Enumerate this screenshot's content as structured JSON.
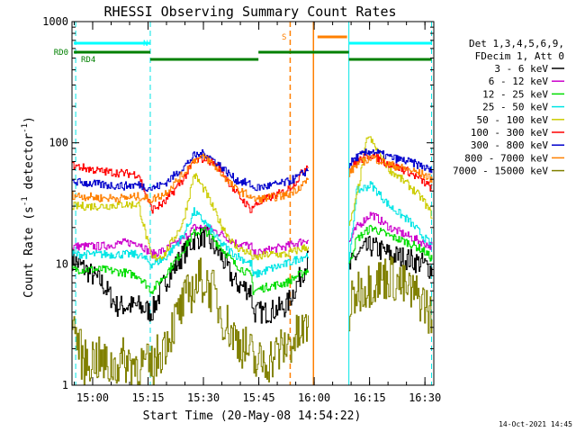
{
  "chart_data": {
    "type": "line",
    "title": "RHESSI Observing Summary Count Rates",
    "xlabel": "Start Time (20-May-08 14:54:22)",
    "ylabel": "Count Rate (s",
    "ylabel_sup": "-1",
    "ylabel_tail": " detector",
    "ylabel_tail_sup": "-1",
    "ylabel_end": ")",
    "x_unit": "minutes since 14:54:22",
    "xlim": [
      0,
      98
    ],
    "ylim": [
      1,
      1000
    ],
    "y_scale": "log",
    "x_tick_labels": [
      "15:00",
      "15:15",
      "15:30",
      "15:45",
      "16:00",
      "16:15",
      "16:30"
    ],
    "x_ticks": [
      5.6,
      20.6,
      35.6,
      50.6,
      65.6,
      80.6,
      95.6
    ],
    "y_tick_labels": [
      "1",
      "10",
      "100",
      "1000"
    ],
    "y_ticks": [
      1,
      10,
      100,
      1000
    ],
    "grid": false,
    "legend_header": [
      "Det 1,3,4,5,6,9,",
      "FDecim 1, Att 0"
    ],
    "legend_position": "right",
    "footer": "14-Oct-2021 14:45",
    "flags": {
      "RD0_label": "RD0",
      "RD4_label": "RD4",
      "N_label": "N",
      "S_label": "S",
      "saa_color": "#00ffff",
      "rd_color": "#008000",
      "s_color": "#ff8000"
    },
    "gaps": [
      [
        64,
        75
      ]
    ],
    "vertical_lines": [
      {
        "x": 1.0,
        "color": "#00e5e5",
        "style": "dashed"
      },
      {
        "x": 21.2,
        "color": "#00e5e5",
        "style": "dashed"
      },
      {
        "x": 75.0,
        "color": "#00e5e5",
        "style": "solid"
      },
      {
        "x": 97.4,
        "color": "#00e5e5",
        "style": "dashed"
      },
      {
        "x": 59.1,
        "color": "#ff8000",
        "style": "dashed"
      },
      {
        "x": 65.4,
        "color": "#ff8000",
        "style": "solid"
      }
    ],
    "series": [
      {
        "name": "3 - 6 keV",
        "color": "#000000",
        "x": [
          0,
          8,
          12,
          18,
          21.5,
          25,
          30,
          33,
          36,
          40,
          44,
          48.5,
          49,
          53,
          58,
          61,
          64,
          75,
          77,
          81,
          86,
          91,
          95,
          97.5
        ],
        "y": [
          11,
          7,
          4.5,
          4.5,
          4,
          7,
          12,
          16,
          17,
          12,
          7,
          6,
          4,
          4,
          4.5,
          7,
          11,
          9,
          12,
          14,
          12,
          11,
          10,
          9
        ]
      },
      {
        "name": "6 - 12 keV",
        "color": "#cc00cc",
        "x": [
          0,
          8,
          14,
          18,
          21.5,
          25,
          30,
          33,
          36,
          40,
          44,
          48.5,
          49,
          53,
          58,
          61,
          64,
          75,
          77,
          81,
          86,
          91,
          95,
          97.5
        ],
        "y": [
          14,
          14,
          15,
          15,
          12,
          13,
          16,
          20,
          20,
          18,
          15,
          14,
          12,
          13,
          14,
          15,
          16,
          15,
          20,
          26,
          20,
          17,
          15,
          14
        ]
      },
      {
        "name": "12 - 25 keV",
        "color": "#00dd00",
        "x": [
          0,
          8,
          14,
          18,
          21.5,
          25,
          30,
          33,
          36,
          40,
          44,
          48.5,
          49,
          53,
          58,
          61,
          64,
          75,
          77,
          81,
          86,
          91,
          95,
          97.5
        ],
        "y": [
          9,
          9,
          8.5,
          8,
          6,
          8,
          13,
          18,
          19,
          14,
          10,
          8,
          6,
          6.5,
          7,
          8,
          9,
          10,
          16,
          20,
          17,
          15,
          13,
          11
        ]
      },
      {
        "name": "25 - 50 keV",
        "color": "#00e5e5",
        "x": [
          0,
          8,
          14,
          18,
          21.5,
          25,
          30,
          33,
          36,
          40,
          44,
          48.5,
          49,
          53,
          58,
          61,
          64,
          75,
          77,
          81,
          86,
          91,
          95,
          97.5
        ],
        "y": [
          12,
          12,
          12,
          12,
          10,
          11,
          17,
          27,
          22,
          15,
          12,
          10,
          8,
          9,
          10,
          11,
          12,
          10,
          40,
          45,
          30,
          23,
          17,
          14
        ]
      },
      {
        "name": "50 - 100 keV",
        "color": "#cccc00",
        "x": [
          0,
          8,
          14,
          18,
          21.5,
          25,
          30,
          33,
          36,
          40,
          44,
          48.5,
          49,
          53,
          58,
          61,
          64,
          75,
          77,
          80,
          86,
          91,
          95,
          97.5
        ],
        "y": [
          30,
          30,
          31,
          31,
          11,
          12,
          22,
          55,
          40,
          22,
          14,
          12,
          11,
          12,
          12,
          13,
          14,
          20,
          35,
          115,
          60,
          45,
          34,
          25
        ]
      },
      {
        "name": "100 - 300 keV",
        "color": "#ff0000",
        "x": [
          0,
          8,
          14,
          18,
          21.5,
          25,
          30,
          33,
          36,
          40,
          44,
          48.5,
          49,
          53,
          58,
          61,
          64,
          75,
          77,
          81,
          86,
          91,
          95,
          97.5
        ],
        "y": [
          65,
          58,
          56,
          55,
          28,
          32,
          50,
          70,
          75,
          62,
          40,
          28,
          30,
          35,
          40,
          50,
          68,
          60,
          70,
          80,
          66,
          58,
          48,
          42
        ]
      },
      {
        "name": "300 - 800 keV",
        "color": "#0000cc",
        "x": [
          0,
          8,
          14,
          18,
          21.5,
          25,
          30,
          33,
          36,
          40,
          44,
          48.5,
          49,
          53,
          58,
          61,
          64,
          75,
          77,
          81,
          86,
          91,
          95,
          97.5
        ],
        "y": [
          48,
          45,
          44,
          45,
          42,
          46,
          62,
          78,
          82,
          65,
          50,
          45,
          42,
          44,
          47,
          52,
          60,
          66,
          76,
          86,
          76,
          70,
          64,
          58
        ]
      },
      {
        "name": "800 - 7000 keV",
        "color": "#ff8000",
        "x": [
          0,
          8,
          14,
          18,
          21.5,
          25,
          30,
          33,
          36,
          40,
          44,
          48.5,
          49,
          53,
          58,
          61,
          64,
          75,
          77,
          81,
          86,
          91,
          95,
          97.5
        ],
        "y": [
          37,
          35,
          35,
          36,
          34,
          38,
          55,
          72,
          76,
          58,
          42,
          36,
          34,
          35,
          37,
          42,
          50,
          56,
          66,
          76,
          66,
          60,
          55,
          50
        ]
      },
      {
        "name": "7000 - 15000 keV",
        "color": "#808000",
        "x": [
          0,
          3,
          6,
          10,
          14,
          18,
          21.5,
          25,
          29,
          32,
          35,
          38,
          41,
          44,
          48.5,
          49,
          53,
          57,
          61,
          64,
          75,
          77,
          81,
          86,
          91,
          95,
          97.5
        ],
        "y": [
          3.5,
          1.5,
          1.7,
          1.4,
          1.6,
          1.5,
          1.4,
          2.2,
          4,
          6,
          7.5,
          6,
          3.5,
          2.5,
          1.8,
          1.5,
          1.6,
          2,
          2.5,
          3,
          4,
          6,
          7,
          8,
          6,
          5,
          3.5
        ]
      }
    ]
  }
}
